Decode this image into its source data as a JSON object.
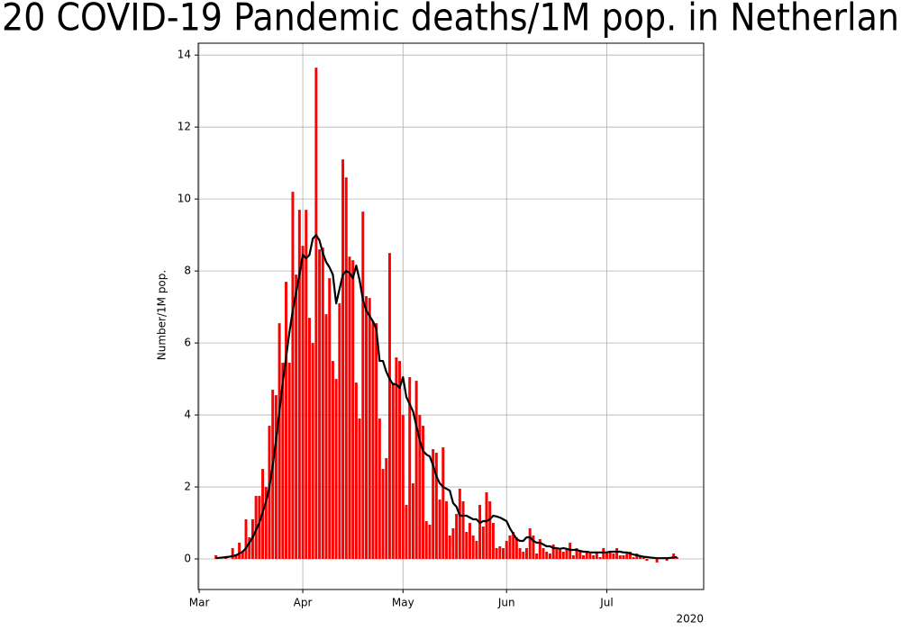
{
  "chart_data": {
    "type": "bar",
    "title": "20 COVID-19 Pandemic deaths/1M pop. in Netherlan",
    "ylabel": "Number/1M pop.",
    "x_offset_label": "2020",
    "xlim": [
      60.7,
      212
    ],
    "ylim": [
      -0.85,
      14.33
    ],
    "xticks": [
      {
        "value": 61,
        "label": "Mar"
      },
      {
        "value": 92,
        "label": "Apr"
      },
      {
        "value": 122,
        "label": "May"
      },
      {
        "value": 153,
        "label": "Jun"
      },
      {
        "value": 183,
        "label": "Jul"
      }
    ],
    "yticks": [
      0,
      2,
      4,
      6,
      8,
      10,
      12,
      14
    ],
    "grid": true,
    "x": [
      66,
      67,
      68,
      69,
      70,
      71,
      72,
      73,
      74,
      75,
      76,
      77,
      78,
      79,
      80,
      81,
      82,
      83,
      84,
      85,
      86,
      87,
      88,
      89,
      90,
      91,
      92,
      93,
      94,
      95,
      96,
      97,
      98,
      99,
      100,
      101,
      102,
      103,
      104,
      105,
      106,
      107,
      108,
      109,
      110,
      111,
      112,
      113,
      114,
      115,
      116,
      117,
      118,
      119,
      120,
      121,
      122,
      123,
      124,
      125,
      126,
      127,
      128,
      129,
      130,
      131,
      132,
      133,
      134,
      135,
      136,
      137,
      138,
      139,
      140,
      141,
      142,
      143,
      144,
      145,
      146,
      147,
      148,
      149,
      150,
      151,
      152,
      153,
      154,
      155,
      156,
      157,
      158,
      159,
      160,
      161,
      162,
      163,
      164,
      165,
      166,
      167,
      168,
      169,
      170,
      171,
      172,
      173,
      174,
      175,
      176,
      177,
      178,
      179,
      180,
      181,
      182,
      183,
      184,
      185,
      186,
      187,
      188,
      189,
      190,
      191,
      192,
      193,
      194,
      195,
      196,
      197,
      198,
      199,
      200,
      201,
      202,
      203,
      204
    ],
    "series": [
      {
        "kind": "bar",
        "color": "#ff0000",
        "values": [
          0.1,
          0,
          0,
          0.05,
          0,
          0.3,
          0.1,
          0.45,
          0.2,
          1.1,
          0.6,
          1.1,
          1.75,
          1.75,
          2.5,
          2.0,
          3.7,
          4.7,
          4.55,
          6.55,
          5.45,
          7.7,
          5.45,
          10.2,
          7.9,
          9.7,
          8.7,
          9.7,
          6.7,
          6.0,
          13.65,
          8.6,
          8.65,
          6.8,
          7.8,
          5.5,
          5.0,
          7.1,
          11.1,
          10.6,
          8.4,
          8.3,
          4.9,
          3.9,
          9.65,
          7.3,
          7.25,
          6.6,
          6.55,
          3.9,
          2.5,
          2.8,
          8.5,
          4.9,
          5.6,
          5.5,
          4.0,
          1.5,
          5.05,
          2.1,
          4.95,
          4.0,
          3.7,
          1.05,
          0.95,
          3.05,
          2.95,
          1.65,
          3.1,
          1.6,
          0.65,
          0.85,
          1.25,
          1.95,
          1.6,
          0.75,
          1.0,
          0.65,
          0.5,
          1.5,
          0.9,
          1.85,
          1.6,
          1.0,
          0.3,
          0.35,
          0.3,
          0.5,
          0.65,
          0.75,
          0.6,
          0.3,
          0.2,
          0.3,
          0.85,
          0.65,
          0.15,
          0.55,
          0.3,
          0.2,
          0.15,
          0.4,
          0.3,
          0.25,
          0.2,
          0.3,
          0.45,
          0.1,
          0.3,
          0.25,
          0.1,
          0.2,
          0.15,
          0.1,
          0.2,
          0.05,
          0.3,
          0.15,
          0.2,
          0.15,
          0.3,
          0.1,
          0.1,
          0.15,
          0.2,
          0.05,
          0.15,
          0.1,
          0.05,
          -0.05,
          0.0,
          0.05,
          -0.1,
          0.0,
          0.05,
          -0.05,
          0.0,
          0.15,
          0.05
        ]
      },
      {
        "kind": "line",
        "color": "#000000",
        "values": [
          0.02,
          0.03,
          0.04,
          0.05,
          0.06,
          0.08,
          0.1,
          0.15,
          0.2,
          0.3,
          0.45,
          0.6,
          0.8,
          1.0,
          1.3,
          1.6,
          2.0,
          2.6,
          3.3,
          4.1,
          4.9,
          5.6,
          6.3,
          6.9,
          7.4,
          7.9,
          8.45,
          8.35,
          8.45,
          8.9,
          9.0,
          8.85,
          8.5,
          8.25,
          8.1,
          7.9,
          7.1,
          7.5,
          7.9,
          8.0,
          7.95,
          7.8,
          8.15,
          7.75,
          7.2,
          6.9,
          6.75,
          6.6,
          6.4,
          5.5,
          5.5,
          5.2,
          5.0,
          4.85,
          4.85,
          4.75,
          5.05,
          4.5,
          4.3,
          4.1,
          3.7,
          3.3,
          3.0,
          2.9,
          2.85,
          2.6,
          2.3,
          2.1,
          2.0,
          1.95,
          1.9,
          1.55,
          1.45,
          1.2,
          1.2,
          1.2,
          1.15,
          1.1,
          1.1,
          1.0,
          1.05,
          1.05,
          1.1,
          1.2,
          1.18,
          1.15,
          1.1,
          1.05,
          0.85,
          0.7,
          0.55,
          0.5,
          0.5,
          0.6,
          0.6,
          0.5,
          0.45,
          0.45,
          0.4,
          0.35,
          0.35,
          0.3,
          0.3,
          0.28,
          0.3,
          0.28,
          0.25,
          0.25,
          0.25,
          0.22,
          0.2,
          0.2,
          0.18,
          0.18,
          0.18,
          0.18,
          0.18,
          0.18,
          0.2,
          0.2,
          0.2,
          0.2,
          0.18,
          0.18,
          0.15,
          0.12,
          0.1,
          0.08,
          0.06,
          0.05,
          0.04,
          0.03,
          0.02,
          0.02,
          0.02,
          0.02,
          0.03,
          0.04,
          0.05
        ]
      }
    ]
  }
}
